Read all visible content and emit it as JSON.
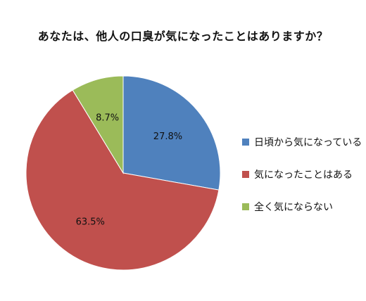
{
  "chart_data": {
    "type": "pie",
    "title": "あなたは、他人の口臭が気になったことはありますか？",
    "slices": [
      {
        "label": "日頃から気になっている",
        "value": 27.8,
        "display": "27.8%",
        "color": "#4F81BD"
      },
      {
        "label": "気になったことはある",
        "value": 63.5,
        "display": "63.5%",
        "color": "#C0504D"
      },
      {
        "label": "全く気にならない",
        "value": 8.7,
        "display": "8.7%",
        "color": "#9BBB59"
      }
    ],
    "start_angle": "12 o'clock",
    "direction": "clockwise",
    "legend_position": "right"
  }
}
